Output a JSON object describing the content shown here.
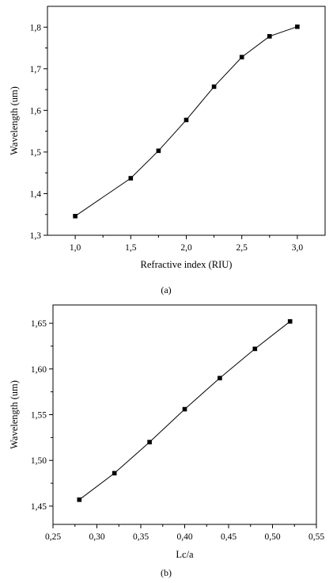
{
  "chart_data": [
    {
      "type": "line",
      "caption": "(a)",
      "xlabel": "Refractive index (RIU)",
      "ylabel": "Wavelength (um)",
      "xlim": [
        0.75,
        3.25
      ],
      "ylim": [
        1.3,
        1.85
      ],
      "x_ticks": [
        1.0,
        1.5,
        2.0,
        2.5,
        3.0
      ],
      "x_tick_labels": [
        "1,0",
        "1,5",
        "2,0",
        "2,5",
        "3,0"
      ],
      "y_ticks": [
        1.3,
        1.4,
        1.5,
        1.6,
        1.7,
        1.8
      ],
      "y_tick_labels": [
        "1,3",
        "1,4",
        "1,5",
        "1,6",
        "1,7",
        "1,8"
      ],
      "grid": false,
      "marker": "square",
      "series": [
        {
          "x": [
            1.0,
            1.5,
            1.75,
            2.0,
            2.25,
            2.5,
            2.75,
            3.0
          ],
          "y": [
            1.346,
            1.437,
            1.503,
            1.577,
            1.657,
            1.728,
            1.778,
            1.801
          ]
        }
      ]
    },
    {
      "type": "line",
      "caption": "(b)",
      "xlabel": "Lc/a",
      "ylabel": "Wavelength (um)",
      "xlim": [
        0.25,
        0.55
      ],
      "ylim": [
        1.43,
        1.67
      ],
      "x_ticks": [
        0.25,
        0.3,
        0.35,
        0.4,
        0.45,
        0.5,
        0.55
      ],
      "x_tick_labels": [
        "0,25",
        "0,30",
        "0,35",
        "0,40",
        "0,45",
        "0,50",
        "0,55"
      ],
      "y_ticks": [
        1.45,
        1.5,
        1.55,
        1.6,
        1.65
      ],
      "y_tick_labels": [
        "1,45",
        "1,50",
        "1,55",
        "1,60",
        "1,65"
      ],
      "grid": false,
      "marker": "square",
      "series": [
        {
          "x": [
            0.28,
            0.32,
            0.36,
            0.4,
            0.44,
            0.48,
            0.52
          ],
          "y": [
            1.457,
            1.486,
            1.52,
            1.556,
            1.59,
            1.622,
            1.652
          ]
        }
      ]
    }
  ]
}
